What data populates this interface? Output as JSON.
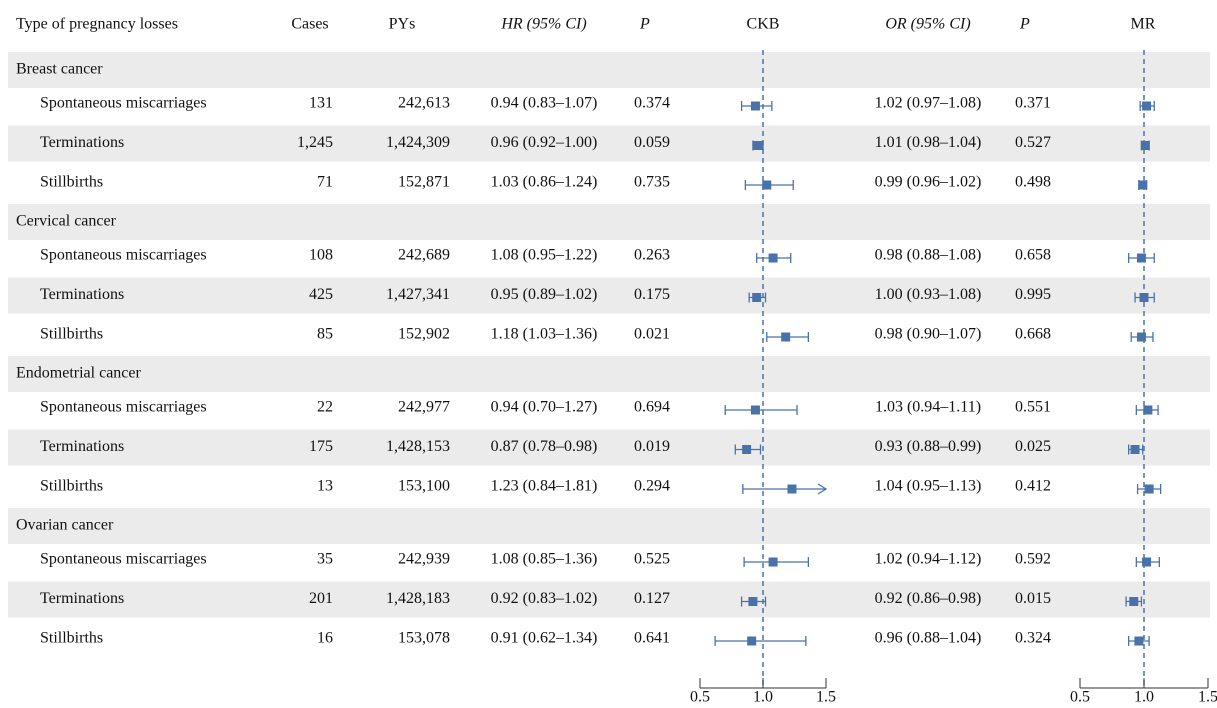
{
  "chart_data": {
    "type": "forest",
    "headers": {
      "label": "Type of pregnancy losses",
      "cases": "Cases",
      "pys": "PYs",
      "hr": "HR (95% CI)",
      "p_ckb": "P",
      "ckb": "CKB",
      "or": "OR (95% CI)",
      "p_mr": "P",
      "mr": "MR"
    },
    "color": "#4a72aa",
    "reference": 1,
    "ckb_xlim": [
      0.5,
      1.5
    ],
    "ckb_xticks": [
      0.5,
      {
        "value": 1,
        "label": "1.0"
      },
      1.5
    ],
    "mr_xlim": [
      0.5,
      1.5
    ],
    "mr_xticks": [
      0.5,
      {
        "value": 1,
        "label": "1.0"
      },
      1.5
    ],
    "groups": [
      {
        "name": "Breast cancer",
        "rows": [
          {
            "label": "Spontaneous miscarriages",
            "cases": "131",
            "pys": "242,613",
            "hr": 0.94,
            "hr_lo": 0.83,
            "hr_hi": 1.07,
            "hr_label": "0.94 (0.83–1.07)",
            "p_ckb": "0.374",
            "or": 1.02,
            "or_lo": 0.97,
            "or_hi": 1.08,
            "or_label": "1.02 (0.97–1.08)",
            "p_mr": "0.371"
          },
          {
            "label": "Terminations",
            "cases": "1,245",
            "pys": "1,424,309",
            "hr": 0.96,
            "hr_lo": 0.92,
            "hr_hi": 1.0,
            "hr_label": "0.96 (0.92–1.00)",
            "p_ckb": "0.059",
            "or": 1.01,
            "or_lo": 0.98,
            "or_hi": 1.04,
            "or_label": "1.01 (0.98–1.04)",
            "p_mr": "0.527"
          },
          {
            "label": "Stillbirths",
            "cases": "71",
            "pys": "152,871",
            "hr": 1.03,
            "hr_lo": 0.86,
            "hr_hi": 1.24,
            "hr_label": "1.03 (0.86–1.24)",
            "p_ckb": "0.735",
            "or": 0.99,
            "or_lo": 0.96,
            "or_hi": 1.02,
            "or_label": "0.99 (0.96–1.02)",
            "p_mr": "0.498"
          }
        ]
      },
      {
        "name": "Cervical cancer",
        "rows": [
          {
            "label": "Spontaneous miscarriages",
            "cases": "108",
            "pys": "242,689",
            "hr": 1.08,
            "hr_lo": 0.95,
            "hr_hi": 1.22,
            "hr_label": "1.08 (0.95–1.22)",
            "p_ckb": "0.263",
            "or": 0.98,
            "or_lo": 0.88,
            "or_hi": 1.08,
            "or_label": "0.98 (0.88–1.08)",
            "p_mr": "0.658"
          },
          {
            "label": "Terminations",
            "cases": "425",
            "pys": "1,427,341",
            "hr": 0.95,
            "hr_lo": 0.89,
            "hr_hi": 1.02,
            "hr_label": "0.95 (0.89–1.02)",
            "p_ckb": "0.175",
            "or": 1.0,
            "or_lo": 0.93,
            "or_hi": 1.08,
            "or_label": "1.00 (0.93–1.08)",
            "p_mr": "0.995"
          },
          {
            "label": "Stillbirths",
            "cases": "85",
            "pys": "152,902",
            "hr": 1.18,
            "hr_lo": 1.03,
            "hr_hi": 1.36,
            "hr_label": "1.18 (1.03–1.36)",
            "p_ckb": "0.021",
            "or": 0.98,
            "or_lo": 0.9,
            "or_hi": 1.07,
            "or_label": "0.98 (0.90–1.07)",
            "p_mr": "0.668"
          }
        ]
      },
      {
        "name": "Endometrial cancer",
        "rows": [
          {
            "label": "Spontaneous miscarriages",
            "cases": "22",
            "pys": "242,977",
            "hr": 0.94,
            "hr_lo": 0.7,
            "hr_hi": 1.27,
            "hr_label": "0.94 (0.70–1.27)",
            "p_ckb": "0.694",
            "or": 1.03,
            "or_lo": 0.94,
            "or_hi": 1.11,
            "or_label": "1.03 (0.94–1.11)",
            "p_mr": "0.551"
          },
          {
            "label": "Terminations",
            "cases": "175",
            "pys": "1,428,153",
            "hr": 0.87,
            "hr_lo": 0.78,
            "hr_hi": 0.98,
            "hr_label": "0.87 (0.78–0.98)",
            "p_ckb": "0.019",
            "or": 0.93,
            "or_lo": 0.88,
            "or_hi": 0.99,
            "or_label": "0.93 (0.88–0.99)",
            "p_mr": "0.025"
          },
          {
            "label": "Stillbirths",
            "cases": "13",
            "pys": "153,100",
            "hr": 1.23,
            "hr_lo": 0.84,
            "hr_hi": 1.81,
            "hr_label": "1.23 (0.84–1.81)",
            "p_ckb": "0.294",
            "or": 1.04,
            "or_lo": 0.95,
            "or_hi": 1.13,
            "or_label": "1.04 (0.95–1.13)",
            "p_mr": "0.412"
          }
        ]
      },
      {
        "name": "Ovarian cancer",
        "rows": [
          {
            "label": "Spontaneous miscarriages",
            "cases": "35",
            "pys": "242,939",
            "hr": 1.08,
            "hr_lo": 0.85,
            "hr_hi": 1.36,
            "hr_label": "1.08 (0.85–1.36)",
            "p_ckb": "0.525",
            "or": 1.02,
            "or_lo": 0.94,
            "or_hi": 1.12,
            "or_label": "1.02 (0.94–1.12)",
            "p_mr": "0.592"
          },
          {
            "label": "Terminations",
            "cases": "201",
            "pys": "1,428,183",
            "hr": 0.92,
            "hr_lo": 0.83,
            "hr_hi": 1.02,
            "hr_label": "0.92 (0.83–1.02)",
            "p_ckb": "0.127",
            "or": 0.92,
            "or_lo": 0.86,
            "or_hi": 0.98,
            "or_label": "0.92 (0.86–0.98)",
            "p_mr": "0.015"
          },
          {
            "label": "Stillbirths",
            "cases": "16",
            "pys": "153,078",
            "hr": 0.91,
            "hr_lo": 0.62,
            "hr_hi": 1.34,
            "hr_label": "0.91 (0.62–1.34)",
            "p_ckb": "0.641",
            "or": 0.96,
            "or_lo": 0.88,
            "or_hi": 1.04,
            "or_label": "0.96 (0.88–1.04)",
            "p_mr": "0.324"
          }
        ]
      }
    ]
  }
}
